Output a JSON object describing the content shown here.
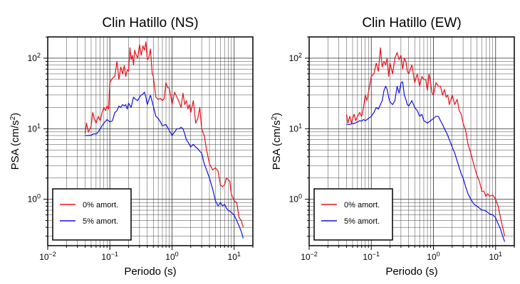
{
  "colors": {
    "undamped": "#e8101a",
    "damped": "#1010e0",
    "grid": "#444444",
    "frame": "#000000"
  },
  "chart_data": [
    {
      "type": "line",
      "title": "Clin Hatillo (NS)",
      "xlabel": "Periodo (s)",
      "ylabel": {
        "main": "PSA (cm/s",
        "sup": "2",
        "tail": ")"
      },
      "xscale": "log",
      "yscale": "log",
      "xlim": [
        0.01,
        20
      ],
      "ylim": [
        0.22,
        200
      ],
      "xticks": [
        {
          "base": "10",
          "exp": "−2"
        },
        {
          "base": "10",
          "exp": "−1"
        },
        {
          "base": "10",
          "exp": "0"
        },
        {
          "base": "10",
          "exp": "1"
        }
      ],
      "yticks": [
        {
          "base": "10",
          "exp": "0"
        },
        {
          "base": "10",
          "exp": "1"
        },
        {
          "base": "10",
          "exp": "2"
        }
      ],
      "grid": true,
      "legend_position": "bottom-left",
      "series": [
        {
          "name": "0% amort.",
          "color": "#e8101a",
          "x": [
            0.04,
            0.042,
            0.045,
            0.048,
            0.05,
            0.053,
            0.056,
            0.06,
            0.065,
            0.07,
            0.075,
            0.08,
            0.085,
            0.09,
            0.095,
            0.1,
            0.11,
            0.12,
            0.13,
            0.14,
            0.15,
            0.16,
            0.17,
            0.18,
            0.19,
            0.2,
            0.21,
            0.22,
            0.23,
            0.24,
            0.25,
            0.26,
            0.28,
            0.3,
            0.32,
            0.34,
            0.36,
            0.38,
            0.4,
            0.42,
            0.45,
            0.48,
            0.5,
            0.55,
            0.6,
            0.65,
            0.7,
            0.75,
            0.8,
            0.85,
            0.9,
            0.95,
            1.0,
            1.1,
            1.2,
            1.3,
            1.4,
            1.5,
            1.6,
            1.7,
            1.8,
            1.9,
            2.0,
            2.2,
            2.4,
            2.6,
            2.8,
            3.0,
            3.3,
            3.6,
            4.0,
            4.5,
            5.0,
            5.5,
            6.0,
            6.5,
            7.0,
            7.5,
            8.0,
            8.5,
            9.0,
            10.0,
            11.0,
            12.0,
            13.0,
            14.0
          ],
          "y": [
            8.5,
            12,
            9,
            10,
            11,
            17,
            14,
            12,
            15,
            13,
            17,
            20,
            18,
            21,
            19,
            45,
            52,
            55,
            90,
            50,
            75,
            60,
            78,
            55,
            68,
            65,
            140,
            95,
            110,
            80,
            130,
            115,
            100,
            155,
            110,
            150,
            130,
            170,
            95,
            100,
            135,
            60,
            55,
            28,
            26,
            27,
            25,
            27,
            45,
            38,
            38,
            30,
            22,
            33,
            28,
            24,
            20,
            32,
            22,
            25,
            19,
            22,
            17,
            25,
            12,
            14,
            20,
            10,
            8,
            5,
            3.2,
            2.6,
            2.8,
            2.5,
            1.6,
            1.5,
            1.6,
            2.0,
            1.9,
            1.8,
            1.2,
            0.95,
            0.9,
            0.55,
            0.5,
            0.4
          ]
        },
        {
          "name": "5% amort.",
          "color": "#1010e0",
          "x": [
            0.04,
            0.045,
            0.05,
            0.055,
            0.06,
            0.065,
            0.07,
            0.075,
            0.08,
            0.09,
            0.1,
            0.11,
            0.12,
            0.13,
            0.14,
            0.15,
            0.16,
            0.17,
            0.18,
            0.19,
            0.2,
            0.22,
            0.24,
            0.26,
            0.28,
            0.3,
            0.32,
            0.34,
            0.36,
            0.38,
            0.4,
            0.45,
            0.5,
            0.55,
            0.6,
            0.65,
            0.7,
            0.8,
            0.9,
            1.0,
            1.1,
            1.2,
            1.3,
            1.4,
            1.5,
            1.6,
            1.7,
            1.8,
            2.0,
            2.2,
            2.4,
            2.6,
            2.8,
            3.0,
            3.3,
            3.6,
            4.0,
            4.5,
            5.0,
            5.5,
            6.0,
            6.5,
            7.0,
            7.5,
            8.0,
            9.0,
            10.0,
            11.0,
            12.0,
            13.0,
            14.0
          ],
          "y": [
            8,
            8,
            8.1,
            8.5,
            8.4,
            9,
            10,
            11,
            12,
            13.5,
            12.5,
            13,
            17,
            18,
            21,
            20,
            22,
            21,
            22,
            19,
            23,
            20,
            28,
            26,
            25,
            28,
            30,
            31,
            33,
            28,
            22,
            30,
            21,
            15,
            14,
            12.5,
            11,
            11.5,
            9.5,
            8,
            9,
            10,
            10,
            10.5,
            10,
            8.5,
            7,
            6.5,
            5.5,
            6,
            5.5,
            5.2,
            4.8,
            4.5,
            3.2,
            2.6,
            2.0,
            1.4,
            0.95,
            0.8,
            0.9,
            0.8,
            0.85,
            0.75,
            0.7,
            0.65,
            0.6,
            0.5,
            0.42,
            0.35,
            0.28
          ]
        }
      ]
    },
    {
      "type": "line",
      "title": "Clin Hatillo (EW)",
      "xlabel": "Periodo (s)",
      "ylabel": {
        "main": "PSA (cm/s",
        "sup": "2",
        "tail": ")"
      },
      "xscale": "log",
      "yscale": "log",
      "xlim": [
        0.01,
        20
      ],
      "ylim": [
        0.22,
        200
      ],
      "xticks": [
        {
          "base": "10",
          "exp": "−2"
        },
        {
          "base": "10",
          "exp": "−1"
        },
        {
          "base": "10",
          "exp": "0"
        },
        {
          "base": "10",
          "exp": "1"
        }
      ],
      "yticks": [
        {
          "base": "10",
          "exp": "0"
        },
        {
          "base": "10",
          "exp": "1"
        },
        {
          "base": "10",
          "exp": "2"
        }
      ],
      "grid": true,
      "legend_position": "bottom-left",
      "series": [
        {
          "name": "0% amort.",
          "color": "#e8101a",
          "x": [
            0.04,
            0.042,
            0.045,
            0.048,
            0.05,
            0.053,
            0.056,
            0.06,
            0.065,
            0.07,
            0.075,
            0.08,
            0.085,
            0.09,
            0.1,
            0.11,
            0.12,
            0.13,
            0.14,
            0.15,
            0.16,
            0.17,
            0.18,
            0.19,
            0.2,
            0.22,
            0.24,
            0.26,
            0.28,
            0.3,
            0.32,
            0.34,
            0.36,
            0.38,
            0.4,
            0.45,
            0.5,
            0.55,
            0.6,
            0.65,
            0.7,
            0.75,
            0.8,
            0.85,
            0.9,
            0.95,
            1.0,
            1.1,
            1.2,
            1.3,
            1.4,
            1.5,
            1.6,
            1.7,
            1.8,
            2.0,
            2.2,
            2.4,
            2.6,
            2.8,
            3.0,
            3.3,
            3.6,
            4.0,
            4.5,
            5.0,
            5.5,
            6.0,
            6.5,
            7.0,
            7.5,
            8.0,
            9.0,
            10.0,
            11.0,
            12.0,
            13.0,
            14.0
          ],
          "y": [
            16,
            12,
            15,
            12,
            14,
            16,
            13,
            15,
            17,
            15,
            20,
            30,
            25,
            33,
            55,
            60,
            85,
            65,
            140,
            75,
            90,
            80,
            100,
            55,
            85,
            60,
            100,
            120,
            95,
            110,
            70,
            100,
            90,
            65,
            60,
            80,
            45,
            60,
            40,
            55,
            50,
            50,
            35,
            60,
            45,
            32,
            30,
            45,
            40,
            40,
            30,
            36,
            28,
            30,
            22,
            30,
            22,
            26,
            18,
            16,
            12,
            9.5,
            6,
            4.5,
            3,
            2.2,
            1.8,
            1.3,
            1.3,
            1.1,
            1.2,
            1.1,
            1.15,
            1.0,
            0.8,
            0.55,
            0.4,
            0.3
          ]
        },
        {
          "name": "5% amort.",
          "color": "#1010e0",
          "x": [
            0.04,
            0.045,
            0.05,
            0.055,
            0.06,
            0.065,
            0.07,
            0.075,
            0.08,
            0.09,
            0.1,
            0.11,
            0.12,
            0.13,
            0.14,
            0.15,
            0.16,
            0.17,
            0.18,
            0.19,
            0.2,
            0.22,
            0.24,
            0.26,
            0.28,
            0.3,
            0.32,
            0.34,
            0.36,
            0.38,
            0.4,
            0.45,
            0.5,
            0.55,
            0.6,
            0.65,
            0.7,
            0.8,
            0.9,
            1.0,
            1.1,
            1.2,
            1.3,
            1.4,
            1.5,
            1.6,
            1.7,
            1.8,
            2.0,
            2.2,
            2.4,
            2.6,
            2.8,
            3.0,
            3.3,
            3.6,
            4.0,
            4.5,
            5.0,
            5.5,
            6.0,
            6.5,
            7.0,
            7.5,
            8.0,
            9.0,
            10.0,
            11.0,
            12.0,
            13.0,
            14.0
          ],
          "y": [
            11.5,
            11.5,
            11.8,
            12,
            12.5,
            13,
            12.8,
            13.5,
            13,
            14,
            15,
            17,
            20,
            19,
            22,
            25,
            35,
            40,
            36,
            28,
            24,
            22,
            25,
            40,
            32,
            45,
            46,
            30,
            26,
            22,
            21,
            25,
            20,
            18,
            15,
            16,
            13,
            12,
            13,
            14,
            15,
            15,
            13,
            11.5,
            10,
            9,
            8,
            7,
            5.5,
            4.5,
            3.5,
            2.8,
            2.3,
            2.0,
            1.5,
            1.2,
            1.0,
            0.85,
            0.8,
            0.75,
            0.7,
            0.7,
            0.68,
            0.65,
            0.62,
            0.6,
            0.55,
            0.45,
            0.38,
            0.3,
            0.25
          ]
        }
      ]
    }
  ]
}
